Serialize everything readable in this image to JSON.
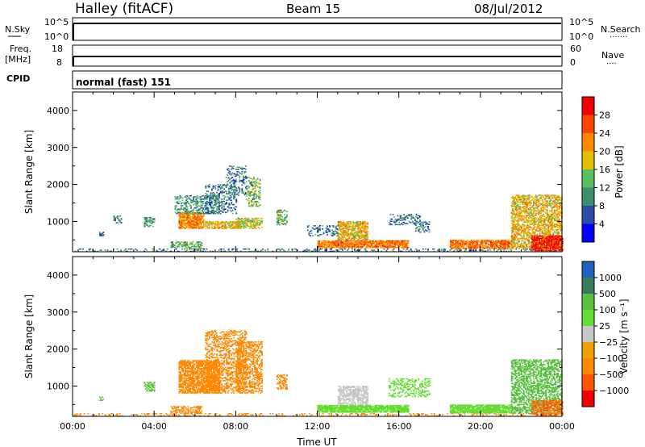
{
  "header": {
    "station": "Halley (fitACF)",
    "beam": "Beam 15",
    "date": "08/Jul/2012"
  },
  "panels": {
    "nsky": {
      "left_label": "N.Sky",
      "left_ticks": [
        "10^5",
        "10^0"
      ],
      "right_ticks": [
        "10^5",
        "10^0"
      ],
      "right_label": "N.Search",
      "right_dots": "·······"
    },
    "freq": {
      "left_label_1": "Freq.",
      "left_label_2": "[MHz]",
      "left_ticks": [
        "18",
        "8"
      ],
      "right_ticks": [
        "60",
        "0"
      ],
      "right_label": "Nave",
      "right_dots": "····"
    },
    "cpid": {
      "label": "CPID",
      "text": "normal (fast) 151"
    }
  },
  "colors": {
    "power_scale": [
      "#0000ff",
      "#2a4ea6",
      "#3d8f6a",
      "#58c060",
      "#e0c000",
      "#ff8800",
      "#ff4400",
      "#ee0000"
    ],
    "velocity_scale": [
      "#2060c0",
      "#3a7a5a",
      "#59c040",
      "#66dd33",
      "#c8c8c8",
      "#f0a000",
      "#ff8800",
      "#ff5500",
      "#ee0000"
    ]
  },
  "chart_data": [
    {
      "type": "heatmap",
      "name": "power",
      "xlabel": "",
      "ylabel": "Slant Range [km]",
      "x_ticks": [],
      "y_ticks": [
        1000,
        2000,
        3000,
        4000
      ],
      "xlim_hours": [
        0,
        24
      ],
      "ylim_km": [
        180,
        4500
      ],
      "colorbar": {
        "label": "Power [dB]",
        "ticks": [
          "28",
          "24",
          "20",
          "16",
          "12",
          "8",
          "4"
        ],
        "range": [
          0,
          30
        ]
      },
      "regions": [
        {
          "t0": 0.0,
          "t1": 24.0,
          "r0": 180,
          "r1": 260,
          "level": 8,
          "density": 0.28
        },
        {
          "t0": 1.3,
          "t1": 1.5,
          "r0": 600,
          "r1": 700,
          "level": 8,
          "density": 0.5
        },
        {
          "t0": 2.0,
          "t1": 2.4,
          "r0": 950,
          "r1": 1150,
          "level": 8,
          "density": 0.5
        },
        {
          "t0": 3.5,
          "t1": 4.0,
          "r0": 850,
          "r1": 1100,
          "level": 10,
          "density": 0.55
        },
        {
          "t0": 4.8,
          "t1": 6.3,
          "r0": 250,
          "r1": 450,
          "level": 12,
          "density": 0.55
        },
        {
          "t0": 5.2,
          "t1": 6.4,
          "r0": 800,
          "r1": 1250,
          "level": 20,
          "density": 0.85
        },
        {
          "t0": 5.0,
          "t1": 7.2,
          "r0": 1200,
          "r1": 1700,
          "level": 10,
          "density": 0.45
        },
        {
          "t0": 6.5,
          "t1": 8.2,
          "r0": 800,
          "r1": 1000,
          "level": 18,
          "density": 0.7
        },
        {
          "t0": 6.5,
          "t1": 8.0,
          "r0": 1200,
          "r1": 2000,
          "level": 8,
          "density": 0.35
        },
        {
          "t0": 7.5,
          "t1": 8.5,
          "r0": 1700,
          "r1": 2500,
          "level": 8,
          "density": 0.3
        },
        {
          "t0": 8.0,
          "t1": 9.3,
          "r0": 800,
          "r1": 1100,
          "level": 16,
          "density": 0.6
        },
        {
          "t0": 8.5,
          "t1": 9.2,
          "r0": 1400,
          "r1": 2200,
          "level": 12,
          "density": 0.4
        },
        {
          "t0": 10.0,
          "t1": 10.5,
          "r0": 900,
          "r1": 1300,
          "level": 12,
          "density": 0.55
        },
        {
          "t0": 12.0,
          "t1": 16.5,
          "r0": 280,
          "r1": 480,
          "level": 22,
          "density": 0.9
        },
        {
          "t0": 13.0,
          "t1": 14.5,
          "r0": 500,
          "r1": 1000,
          "level": 18,
          "density": 0.75
        },
        {
          "t0": 11.5,
          "t1": 13.0,
          "r0": 600,
          "r1": 900,
          "level": 8,
          "density": 0.3
        },
        {
          "t0": 15.5,
          "t1": 17.0,
          "r0": 900,
          "r1": 1200,
          "level": 8,
          "density": 0.35
        },
        {
          "t0": 16.8,
          "t1": 17.5,
          "r0": 700,
          "r1": 1000,
          "level": 8,
          "density": 0.4
        },
        {
          "t0": 18.5,
          "t1": 21.5,
          "r0": 260,
          "r1": 480,
          "level": 22,
          "density": 0.85
        },
        {
          "t0": 21.5,
          "t1": 24.0,
          "r0": 250,
          "r1": 1700,
          "level": 18,
          "density": 0.6
        },
        {
          "t0": 22.5,
          "t1": 24.0,
          "r0": 200,
          "r1": 600,
          "level": 27,
          "density": 0.85
        }
      ]
    },
    {
      "type": "heatmap",
      "name": "velocity",
      "xlabel": "Time UT",
      "ylabel": "Slant Range [km]",
      "x_ticks": [
        "00:00",
        "04:00",
        "08:00",
        "12:00",
        "16:00",
        "20:00",
        "00:00"
      ],
      "y_ticks": [
        1000,
        2000,
        3000,
        4000
      ],
      "xlim_hours": [
        0,
        24
      ],
      "ylim_km": [
        180,
        4500
      ],
      "colorbar": {
        "label": "Velocity [m s⁻¹]",
        "ticks": [
          "1000",
          "500",
          "100",
          "25",
          "−25",
          "−100",
          "−500",
          "−1000"
        ],
        "range": [
          -1200,
          1200
        ]
      },
      "regions": [
        {
          "t0": 0.0,
          "t1": 24.0,
          "r0": 180,
          "r1": 260,
          "vel": -150,
          "density": 0.22
        },
        {
          "t0": 1.3,
          "t1": 1.5,
          "r0": 600,
          "r1": 700,
          "vel": 150,
          "density": 0.5
        },
        {
          "t0": 3.5,
          "t1": 4.0,
          "r0": 850,
          "r1": 1100,
          "vel": 250,
          "density": 0.5
        },
        {
          "t0": 4.8,
          "t1": 6.3,
          "r0": 250,
          "r1": 450,
          "vel": -200,
          "density": 0.55
        },
        {
          "t0": 5.2,
          "t1": 7.2,
          "r0": 800,
          "r1": 1700,
          "vel": -300,
          "density": 0.75
        },
        {
          "t0": 6.5,
          "t1": 8.5,
          "r0": 800,
          "r1": 2500,
          "vel": -300,
          "density": 0.45
        },
        {
          "t0": 8.0,
          "t1": 9.3,
          "r0": 800,
          "r1": 2200,
          "vel": -300,
          "density": 0.5
        },
        {
          "t0": 10.0,
          "t1": 10.5,
          "r0": 900,
          "r1": 1300,
          "vel": -200,
          "density": 0.5
        },
        {
          "t0": 12.0,
          "t1": 16.5,
          "r0": 280,
          "r1": 480,
          "vel": 60,
          "density": 0.9
        },
        {
          "t0": 13.0,
          "t1": 14.5,
          "r0": 500,
          "r1": 1000,
          "vel": 5,
          "density": 0.7
        },
        {
          "t0": 15.5,
          "t1": 17.5,
          "r0": 700,
          "r1": 1200,
          "vel": 60,
          "density": 0.35
        },
        {
          "t0": 18.5,
          "t1": 21.5,
          "r0": 260,
          "r1": 480,
          "vel": 60,
          "density": 0.85
        },
        {
          "t0": 21.5,
          "t1": 24.0,
          "r0": 250,
          "r1": 1700,
          "vel": 300,
          "density": 0.55
        },
        {
          "t0": 22.5,
          "t1": 24.0,
          "r0": 200,
          "r1": 600,
          "vel": -600,
          "density": 0.65
        }
      ]
    }
  ]
}
